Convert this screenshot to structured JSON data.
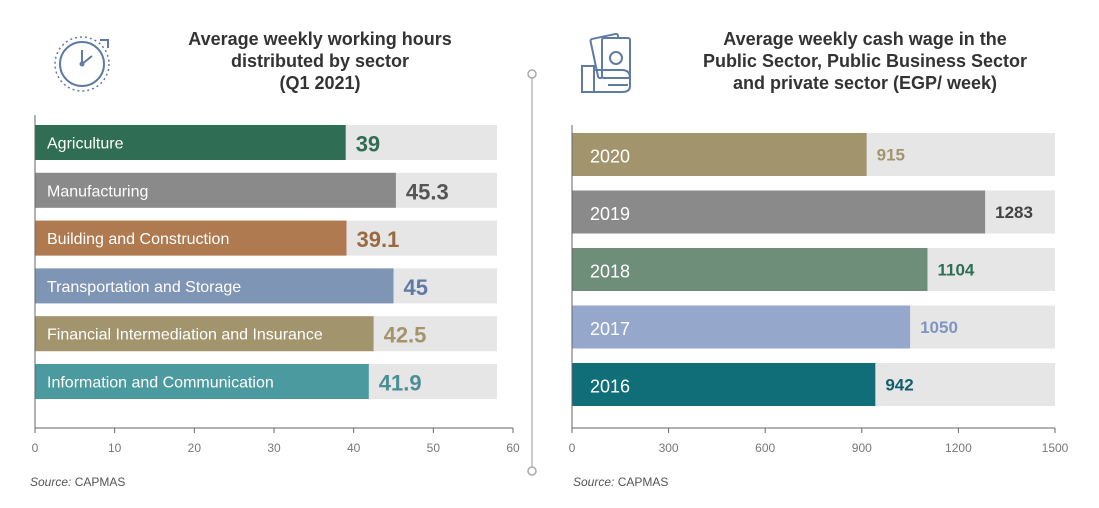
{
  "left_title": [
    "Average weekly working hours",
    "distributed by sector",
    "(Q1 2021)"
  ],
  "right_title": [
    "Average weekly cash wage in the",
    "Public Sector, Public Business Sector",
    "and private sector (EGP/ week)"
  ],
  "source_label": "Source:",
  "source_name": "CAPMAS",
  "icons": {
    "left": "clock-icon",
    "right": "money-hand-icon"
  },
  "chart_data": [
    {
      "type": "bar",
      "orientation": "horizontal",
      "title": "Average weekly working hours distributed by sector (Q1 2021)",
      "categories": [
        "Agriculture",
        "Manufacturing",
        "Building and Construction",
        "Transportation and Storage",
        "Financial Intermediation and Insurance",
        "Information and Communication"
      ],
      "values": [
        39,
        45.3,
        39.1,
        45,
        42.5,
        41.9
      ],
      "value_labels": [
        "39",
        "45.3",
        "39.1",
        "45",
        "42.5",
        "41.9"
      ],
      "colors": [
        "#2f6e55",
        "#8a8a8a",
        "#b07a50",
        "#7f95b5",
        "#a2946c",
        "#4b9aa0"
      ],
      "label_colors": [
        "#2f6e55",
        "#555555",
        "#9a6a3e",
        "#5f7aa3",
        "#a2946c",
        "#4b8f96"
      ],
      "track_color": "#e6e6e6",
      "xlim": [
        0,
        60
      ],
      "xticks": [
        0,
        10,
        20,
        30,
        40,
        50,
        60
      ],
      "track_max": 58
    },
    {
      "type": "bar",
      "orientation": "horizontal",
      "title": "Average weekly cash wage in the Public Sector, Public Business Sector and private sector (EGP/ week)",
      "categories": [
        "2020",
        "2019",
        "2018",
        "2017",
        "2016"
      ],
      "values": [
        915,
        1283,
        1104,
        1050,
        942
      ],
      "value_labels": [
        "915",
        "1283",
        "1104",
        "1050",
        "942"
      ],
      "colors": [
        "#a2946c",
        "#8a8a8a",
        "#6e8e7a",
        "#95a8cc",
        "#0f6e78"
      ],
      "label_colors": [
        "#a2946c",
        "#444444",
        "#2f6e55",
        "#7f95c3",
        "#0f5e6a"
      ],
      "track_color": "#e6e6e6",
      "xlim": [
        0,
        1500
      ],
      "xticks": [
        0,
        300,
        600,
        900,
        1200,
        1500
      ],
      "track_max": 1500
    }
  ]
}
